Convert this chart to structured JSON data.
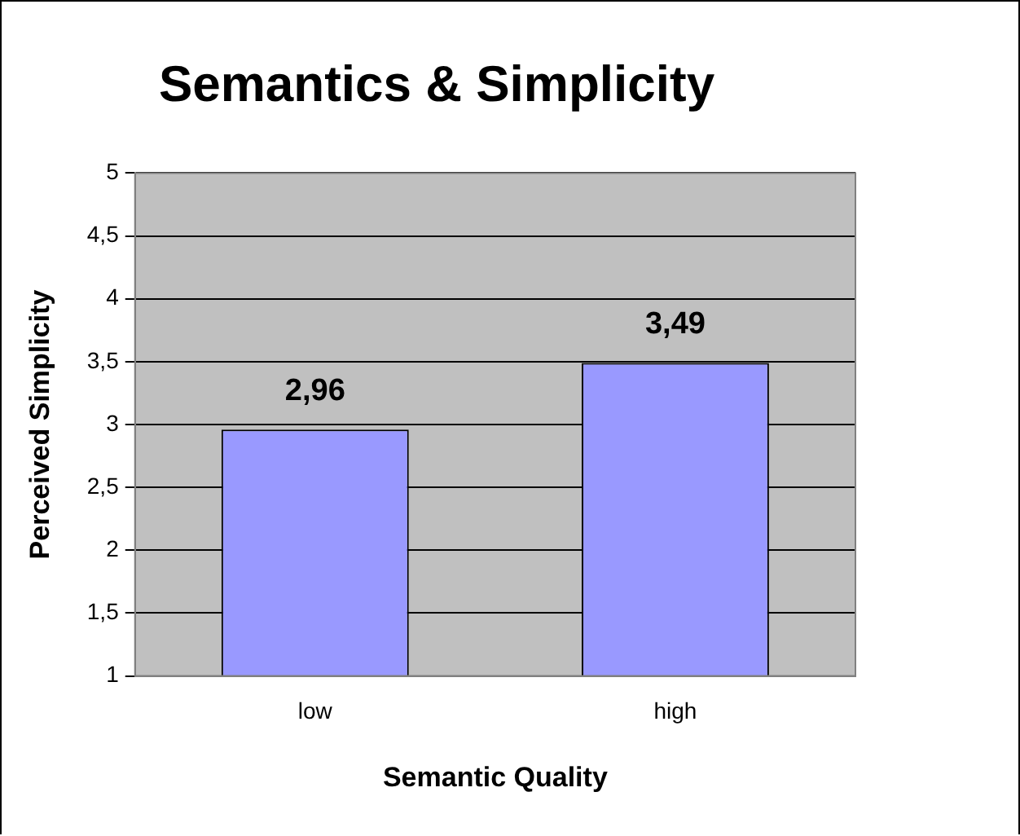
{
  "chart_data": {
    "type": "bar",
    "title": "Semantics & Simplicity",
    "xlabel": "Semantic Quality",
    "ylabel": "Perceived Simplicity",
    "categories": [
      "low",
      "high"
    ],
    "values": [
      2.96,
      3.49
    ],
    "value_labels": [
      "2,96",
      "3,49"
    ],
    "color": "#9999ff",
    "ylim": [
      1,
      5
    ],
    "yticks": [
      1,
      {
        "value": 1.5,
        "label": "1,5"
      },
      2,
      {
        "value": 2.5,
        "label": "2,5"
      },
      3,
      {
        "value": 3.5,
        "label": "3,5"
      },
      4,
      {
        "value": 4.5,
        "label": "4,5"
      },
      5
    ],
    "grid": "y",
    "legend": false
  }
}
